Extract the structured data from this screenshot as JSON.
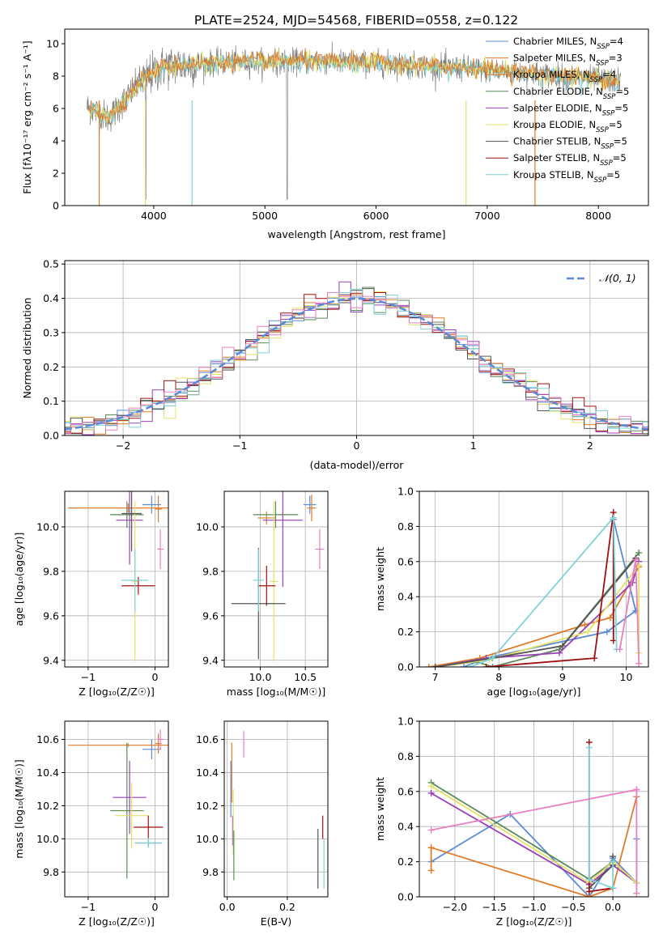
{
  "figure_title": "PLATE=2524, MJD=54568, FIBERID=0558, z=0.122",
  "colors": {
    "c0": "#5b8bd6",
    "c1": "#e07b28",
    "c2": "#e07b28",
    "c3": "#5a8a5a",
    "c4": "#9a3fb8",
    "c5": "#e6e066",
    "c6": "#555555",
    "c7": "#a01010",
    "c8": "#7fd3d8",
    "pink": "#e880c0",
    "gaussian": "#5b8bd6",
    "grid": "#b0b0b0"
  },
  "chart_data": [
    {
      "id": "spectrum",
      "type": "line",
      "title": "PLATE=2524, MJD=54568, FIBERID=0558, z=0.122",
      "xlabel": "wavelength [Angstrom, rest frame]",
      "ylabel": "Flux [fλ10⁻¹⁷ erg cm⁻² s⁻¹ A⁻¹]",
      "xlim": [
        3200,
        8450
      ],
      "ylim": [
        0,
        10.9
      ],
      "xticks": [
        "4000",
        "5000",
        "6000",
        "7000",
        "8000"
      ],
      "yticks": [
        "0",
        "2",
        "4",
        "6",
        "8",
        "10"
      ],
      "grid": false,
      "legend_position": "top-right",
      "legend": [
        {
          "base": "Chabrier MILES, N",
          "n": "4"
        },
        {
          "base": "Salpeter MILES, N",
          "n": "3"
        },
        {
          "base": "Kroupa MILES, N",
          "n": "4"
        },
        {
          "base": "Chabrier ELODIE, N",
          "n": "5"
        },
        {
          "base": "Salpeter ELODIE, N",
          "n": "5"
        },
        {
          "base": "Kroupa ELODIE, N",
          "n": "5"
        },
        {
          "base": "Chabrier STELIB, N",
          "n": "5"
        },
        {
          "base": "Salpeter STELIB, N",
          "n": "5"
        },
        {
          "base": "Kroupa STELIB, N",
          "n": "5"
        }
      ],
      "legend_sub": "SSP",
      "continuum_model": {
        "x": [
          3400,
          3600,
          3900,
          4100,
          4500,
          5000,
          5500,
          6000,
          6500,
          7000,
          7500,
          8000,
          8200
        ],
        "y": [
          6.1,
          5.4,
          7.8,
          8.6,
          8.8,
          8.9,
          8.9,
          8.8,
          8.6,
          8.4,
          8.1,
          7.8,
          7.7
        ]
      }
    },
    {
      "id": "residuals",
      "type": "bar",
      "xlabel": "(data-model)/error",
      "ylabel": "Normed distribution",
      "xlim": [
        -2.5,
        2.5
      ],
      "ylim": [
        0,
        0.51
      ],
      "xticks": [
        "−2",
        "−1",
        "0",
        "1",
        "2"
      ],
      "yticks": [
        "0.0",
        "0.1",
        "0.2",
        "0.3",
        "0.4",
        "0.5"
      ],
      "grid": true,
      "legend_position": "top-right",
      "legend": [
        "𝒩(0, 1)"
      ],
      "bin_width": 0.1,
      "gaussian_mean": 0,
      "gaussian_sigma": 1
    },
    {
      "id": "age-vs-Z",
      "type": "scatter",
      "xlabel": "Z [log₁₀(Z/Z☉)]",
      "ylabel": "age  [log₁₀(age/yr)]",
      "xlim": [
        -1.35,
        0.2
      ],
      "ylim": [
        9.37,
        10.16
      ],
      "xticks": [
        {
          "v": -1,
          "t": "−1"
        },
        {
          "v": 0,
          "t": "0"
        }
      ],
      "yticks": [
        {
          "v": 9.4,
          "t": "9.4"
        },
        {
          "v": 9.6,
          "t": "9.6"
        },
        {
          "v": 9.8,
          "t": "9.8"
        },
        {
          "v": 10.0,
          "t": "10.0"
        }
      ],
      "grid": true,
      "points": [
        {
          "x": -0.05,
          "y": 10.1,
          "xe": 0.14,
          "ye": 0.04,
          "c": "c0"
        },
        {
          "x": -0.4,
          "y": 10.085,
          "xe": 0.9,
          "ye": 0.02,
          "c": "c1"
        },
        {
          "x": 0.05,
          "y": 10.08,
          "xe": 0.05,
          "ye": 0.06,
          "c": "c2"
        },
        {
          "x": -0.42,
          "y": 10.055,
          "xe": 0.25,
          "ye": 0.06,
          "c": "c3"
        },
        {
          "x": -0.38,
          "y": 10.03,
          "xe": 0.2,
          "ye": 0.2,
          "c": "c4"
        },
        {
          "x": -0.3,
          "y": 9.755,
          "xe": 0.05,
          "ye": 0.36,
          "c": "c5"
        },
        {
          "x": -0.35,
          "y": 10.06,
          "xe": 0.15,
          "ye": 0.17,
          "c": "c6"
        },
        {
          "x": -0.25,
          "y": 9.735,
          "xe": 0.25,
          "ye": 0.04,
          "c": "c7"
        },
        {
          "x": -0.3,
          "y": 9.76,
          "xe": 0.2,
          "ye": 0.14,
          "c": "c8"
        },
        {
          "x": 0.08,
          "y": 9.9,
          "xe": 0.05,
          "ye": 0.09,
          "c": "pink"
        }
      ]
    },
    {
      "id": "age-vs-mass",
      "type": "scatter",
      "xlabel": "mass [log₁₀(M/M☉)]",
      "ylabel": "",
      "xlim": [
        9.6,
        10.75
      ],
      "ylim": [
        9.37,
        10.16
      ],
      "xticks": [
        {
          "v": 10.0,
          "t": "10.0"
        },
        {
          "v": 10.5,
          "t": "10.5"
        }
      ],
      "yticks": [
        {
          "v": 9.4,
          "t": "9.4"
        },
        {
          "v": 9.6,
          "t": "9.6"
        },
        {
          "v": 9.8,
          "t": "9.8"
        },
        {
          "v": 10.0,
          "t": "10.0"
        }
      ],
      "grid": true,
      "points": [
        {
          "x": 10.55,
          "y": 10.1,
          "xe": 0.07,
          "ye": 0.04,
          "c": "c0"
        },
        {
          "x": 10.57,
          "y": 10.085,
          "xe": 0.05,
          "ye": 0.06,
          "c": "c1"
        },
        {
          "x": 10.07,
          "y": 10.04,
          "xe": 0.1,
          "ye": 0.03,
          "c": "c2"
        },
        {
          "x": 10.17,
          "y": 10.055,
          "xe": 0.25,
          "ye": 0.06,
          "c": "c3"
        },
        {
          "x": 10.25,
          "y": 10.03,
          "xe": 0.22,
          "ye": 0.3,
          "c": "c4"
        },
        {
          "x": 10.15,
          "y": 9.755,
          "xe": 0.05,
          "ye": 0.36,
          "c": "c5"
        },
        {
          "x": 9.98,
          "y": 9.655,
          "xe": 0.3,
          "ye": 0.25,
          "c": "c6"
        },
        {
          "x": 10.07,
          "y": 9.735,
          "xe": 0.1,
          "ye": 0.09,
          "c": "c7"
        },
        {
          "x": 9.98,
          "y": 9.76,
          "xe": 0.06,
          "ye": 0.14,
          "c": "c8"
        },
        {
          "x": 10.66,
          "y": 9.9,
          "xe": 0.05,
          "ye": 0.09,
          "c": "pink"
        }
      ]
    },
    {
      "id": "weight-vs-age",
      "type": "line",
      "xlabel": "age  [log₁₀(age/yr)]",
      "ylabel": "mass weight",
      "xlim": [
        6.75,
        10.35
      ],
      "ylim": [
        0,
        1.0
      ],
      "xticks": [
        {
          "v": 7,
          "t": "7"
        },
        {
          "v": 8,
          "t": "8"
        },
        {
          "v": 9,
          "t": "9"
        },
        {
          "v": 10,
          "t": "10"
        }
      ],
      "yticks": [
        {
          "v": 0,
          "t": "0.0"
        },
        {
          "v": 0.2,
          "t": "0.2"
        },
        {
          "v": 0.4,
          "t": "0.4"
        },
        {
          "v": 0.6,
          "t": "0.6"
        },
        {
          "v": 0.8,
          "t": "0.8"
        },
        {
          "v": 1.0,
          "t": "1.0"
        }
      ],
      "grid": true,
      "series": [
        {
          "c": "c0",
          "x": [
            7.45,
            7.8,
            9.7,
            10.15,
            9.8
          ],
          "y": [
            0.0,
            0.05,
            0.2,
            0.32,
            0.84
          ]
        },
        {
          "c": "c1",
          "x": [
            6.9,
            7.7,
            9.35,
            9.75,
            10.2
          ],
          "y": [
            0.0,
            0.05,
            0.24,
            0.28,
            0.57
          ]
        },
        {
          "c": "c3",
          "x": [
            7.0,
            7.65,
            7.9,
            8.95,
            10.2
          ],
          "y": [
            0.0,
            0.03,
            0.0,
            0.1,
            0.65
          ]
        },
        {
          "c": "c4",
          "x": [
            7.0,
            7.8,
            8.95,
            10.1,
            10.2
          ],
          "y": [
            0.0,
            0.05,
            0.08,
            0.48,
            0.6
          ]
        },
        {
          "c": "c5",
          "x": [
            7.0,
            7.85,
            9.4,
            10.2,
            10.2
          ],
          "y": [
            0.0,
            0.04,
            0.2,
            0.58,
            0.08
          ]
        },
        {
          "c": "c6",
          "x": [
            7.0,
            7.9,
            9.0,
            10.15
          ],
          "y": [
            0.0,
            0.05,
            0.12,
            0.62
          ]
        },
        {
          "c": "c7",
          "x": [
            7.8,
            9.5,
            9.8,
            9.8
          ],
          "y": [
            0.0,
            0.05,
            0.88,
            0.15
          ]
        },
        {
          "c": "c8",
          "x": [
            7.55,
            7.9,
            9.8,
            9.85
          ],
          "y": [
            0.0,
            0.05,
            0.85,
            0.1
          ]
        },
        {
          "c": "pink",
          "x": [
            9.9,
            10.15,
            10.2
          ],
          "y": [
            0.1,
            0.61,
            0.02
          ]
        }
      ]
    },
    {
      "id": "mass-vs-Z",
      "type": "scatter",
      "xlabel": "Z [log₁₀(Z/Z☉)]",
      "ylabel": "mass [log₁₀(M/M☉)]",
      "xlim": [
        -1.35,
        0.2
      ],
      "ylim": [
        9.65,
        10.71
      ],
      "xticks": [
        {
          "v": -1,
          "t": "−1"
        },
        {
          "v": 0,
          "t": "0"
        }
      ],
      "yticks": [
        {
          "v": 9.8,
          "t": "9.8"
        },
        {
          "v": 10.0,
          "t": "10.0"
        },
        {
          "v": 10.2,
          "t": "10.2"
        },
        {
          "v": 10.4,
          "t": "10.4"
        },
        {
          "v": 10.6,
          "t": "10.6"
        }
      ],
      "grid": true,
      "points": [
        {
          "x": -0.05,
          "y": 10.54,
          "xe": 0.14,
          "ye": 0.06,
          "c": "c0"
        },
        {
          "x": -0.4,
          "y": 10.565,
          "xe": 0.9,
          "ye": 0.01,
          "c": "c1"
        },
        {
          "x": 0.05,
          "y": 10.575,
          "xe": 0.05,
          "ye": 0.06,
          "c": "c2"
        },
        {
          "x": -0.42,
          "y": 10.17,
          "xe": 0.25,
          "ye": 0.41,
          "c": "c3"
        },
        {
          "x": -0.38,
          "y": 10.25,
          "xe": 0.25,
          "ye": 0.22,
          "c": "c4"
        },
        {
          "x": -0.35,
          "y": 10.14,
          "xe": 0.25,
          "ye": 0.2,
          "c": "c5"
        },
        {
          "x": -0.1,
          "y": 9.975,
          "xe": 0.2,
          "ye": 0.02,
          "c": "c6"
        },
        {
          "x": -0.1,
          "y": 10.07,
          "xe": 0.22,
          "ye": 0.07,
          "c": "c7"
        },
        {
          "x": -0.1,
          "y": 9.975,
          "xe": 0.2,
          "ye": 0.03,
          "c": "c8"
        },
        {
          "x": 0.08,
          "y": 10.6,
          "xe": 0.05,
          "ye": 0.06,
          "c": "pink"
        }
      ]
    },
    {
      "id": "mass-vs-EBV",
      "type": "scatter",
      "xlabel": "E(B-V)",
      "ylabel": "",
      "xlim": [
        -0.01,
        0.335
      ],
      "ylim": [
        9.65,
        10.71
      ],
      "xticks": [
        {
          "v": 0.0,
          "t": "0.0"
        },
        {
          "v": 0.2,
          "t": "0.2"
        }
      ],
      "yticks": [
        {
          "v": 9.8,
          "t": "9.8"
        },
        {
          "v": 10.0,
          "t": "10.0"
        },
        {
          "v": 10.2,
          "t": "10.2"
        },
        {
          "v": 10.4,
          "t": "10.4"
        },
        {
          "v": 10.6,
          "t": "10.6"
        }
      ],
      "grid": true,
      "points": [
        {
          "x": 0.012,
          "y": 10.3,
          "xe": 0.0,
          "ye": 0.17,
          "c": "c0"
        },
        {
          "x": 0.015,
          "y": 10.4,
          "xe": 0.0,
          "ye": 0.18,
          "c": "c1"
        },
        {
          "x": 0.018,
          "y": 10.05,
          "xe": 0.0,
          "ye": 0.09,
          "c": "c4"
        },
        {
          "x": 0.02,
          "y": 10.1,
          "xe": 0.0,
          "ye": 0.2,
          "c": "c5"
        },
        {
          "x": 0.022,
          "y": 9.9,
          "xe": 0.0,
          "ye": 0.15,
          "c": "c3"
        },
        {
          "x": 0.055,
          "y": 10.57,
          "xe": 0.0,
          "ye": 0.08,
          "c": "pink"
        },
        {
          "x": 0.302,
          "y": 9.88,
          "xe": 0.0,
          "ye": 0.18,
          "c": "c6"
        },
        {
          "x": 0.318,
          "y": 10.07,
          "xe": 0.0,
          "ye": 0.07,
          "c": "c7"
        },
        {
          "x": 0.322,
          "y": 9.85,
          "xe": 0.0,
          "ye": 0.15,
          "c": "c8"
        }
      ]
    },
    {
      "id": "weight-vs-Z",
      "type": "line",
      "xlabel": "Z [log₁₀(Z/Z☉)]",
      "ylabel": "mass weight",
      "xlim": [
        -2.45,
        0.45
      ],
      "ylim": [
        0,
        1.0
      ],
      "xticks": [
        {
          "v": -2.0,
          "t": "−2.0"
        },
        {
          "v": -1.5,
          "t": "−1.5"
        },
        {
          "v": -1.0,
          "t": "−1.0"
        },
        {
          "v": -0.5,
          "t": "−0.5"
        },
        {
          "v": 0.0,
          "t": "0.0"
        }
      ],
      "yticks": [
        {
          "v": 0,
          "t": "0.0"
        },
        {
          "v": 0.2,
          "t": "0.2"
        },
        {
          "v": 0.4,
          "t": "0.4"
        },
        {
          "v": 0.6,
          "t": "0.6"
        },
        {
          "v": 0.8,
          "t": "0.8"
        },
        {
          "v": 1.0,
          "t": "1.0"
        }
      ],
      "grid": true,
      "series": [
        {
          "c": "c0",
          "x": [
            -2.3,
            -1.3,
            -0.3,
            0.0,
            0.3,
            0.3
          ],
          "y": [
            0.2,
            0.47,
            0.0,
            0.22,
            0.08,
            0.33
          ]
        },
        {
          "c": "c1",
          "x": [
            -2.3,
            -2.3,
            -0.3,
            0.0,
            0.3
          ],
          "y": [
            0.15,
            0.28,
            0.0,
            0.05,
            0.57
          ]
        },
        {
          "c": "c3",
          "x": [
            -2.3,
            -0.3,
            0.0,
            0.3
          ],
          "y": [
            0.65,
            0.1,
            0.2,
            0.08
          ]
        },
        {
          "c": "c4",
          "x": [
            -2.3,
            -0.3,
            0.0,
            0.3
          ],
          "y": [
            0.59,
            0.07,
            0.18,
            0.08
          ]
        },
        {
          "c": "c5",
          "x": [
            -2.3,
            -0.3,
            0.0,
            0.3
          ],
          "y": [
            0.63,
            0.08,
            0.2,
            0.08
          ]
        },
        {
          "c": "c6",
          "x": [
            -0.3,
            0.0,
            0.0
          ],
          "y": [
            0.05,
            0.18,
            0.23
          ]
        },
        {
          "c": "c7",
          "x": [
            -0.3,
            -0.3,
            0.0
          ],
          "y": [
            0.88,
            0.03,
            0.05
          ]
        },
        {
          "c": "c8",
          "x": [
            -0.3,
            -0.3,
            0.0,
            0.0
          ],
          "y": [
            0.85,
            0.1,
            0.05,
            0.2
          ]
        },
        {
          "c": "pink",
          "x": [
            -2.3,
            0.3,
            0.3,
            0.3
          ],
          "y": [
            0.38,
            0.61,
            0.61,
            0.02
          ]
        }
      ]
    }
  ]
}
